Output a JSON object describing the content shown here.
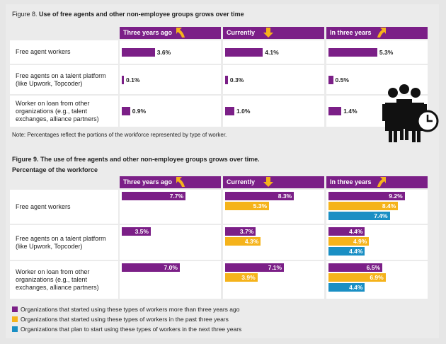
{
  "fig8": {
    "title_prefix": "Figure 8.",
    "title": "Use of free agents and other non-employee groups grows over time",
    "note": "Note: Percentages reflect the portions of the workforce represented by type of worker."
  },
  "fig9": {
    "title_prefix": "Figure 9.",
    "title": "The use of free agents and other non-employee groups grows over time.",
    "subtitle": "Percentage of the workforce"
  },
  "columns": [
    "Three years ago",
    "Currently",
    "In three years"
  ],
  "rows": [
    "Free agent workers",
    "Free agents on a talent platform (like Upwork, Topcoder)",
    "Worker on loan from other organizations (e.g., talent exchanges, alliance partners)"
  ],
  "legend": [
    {
      "label": "Organizations that started using these types of workers more than three years ago",
      "color": "#7b1f87"
    },
    {
      "label": "Organizations that started using these types of workers in the past three years",
      "color": "#f5b31b"
    },
    {
      "label": "Organizations that plan to start using these types of workers in the next three years",
      "color": "#1a8fc4"
    }
  ],
  "icons": [
    "arrow-up-icon",
    "arrow-down-icon",
    "arrow-up-icon",
    "people-clock-icon"
  ],
  "chart_data": [
    {
      "type": "bar",
      "title": "Use of free agents and other non-employee groups grows over time",
      "categories": [
        "Free agent workers",
        "Free agents on a talent platform (like Upwork, Topcoder)",
        "Worker on loan from other organizations (e.g., talent exchanges, alliance partners)"
      ],
      "groups": [
        "Three years ago",
        "Currently",
        "In three years"
      ],
      "values": [
        [
          3.6,
          4.1,
          5.3
        ],
        [
          0.1,
          0.3,
          0.5
        ],
        [
          0.9,
          1.0,
          1.4
        ]
      ],
      "labels": [
        [
          "3.6%",
          "4.1%",
          "5.3%"
        ],
        [
          "0.1%",
          "0.3%",
          "0.5%"
        ],
        [
          "0.9%",
          "1.0%",
          "1.4%"
        ]
      ],
      "unit": "%"
    },
    {
      "type": "bar",
      "title": "The use of free agents and other non-employee groups grows over time.",
      "subtitle": "Percentage of the workforce",
      "categories": [
        "Free agent workers",
        "Free agents on a talent platform (like Upwork, Topcoder)",
        "Worker on loan from other organizations (e.g., talent exchanges, alliance partners)"
      ],
      "groups": [
        "Three years ago",
        "Currently",
        "In three years"
      ],
      "series_colors": [
        "#7b1f87",
        "#f5b31b",
        "#1a8fc4"
      ],
      "values": [
        [
          [
            7.7
          ],
          [
            8.3,
            5.3
          ],
          [
            9.2,
            8.4,
            7.4
          ]
        ],
        [
          [
            3.5
          ],
          [
            3.7,
            4.3
          ],
          [
            4.4,
            4.9,
            4.4
          ]
        ],
        [
          [
            7.0
          ],
          [
            7.1,
            3.9
          ],
          [
            6.5,
            6.9,
            4.4
          ]
        ]
      ],
      "labels": [
        [
          [
            "7.7%"
          ],
          [
            "8.3%",
            "5.3%"
          ],
          [
            "9.2%",
            "8.4%",
            "7.4%"
          ]
        ],
        [
          [
            "3.5%"
          ],
          [
            "3.7%",
            "4.3%"
          ],
          [
            "4.4%",
            "4.9%",
            "4.4%"
          ]
        ],
        [
          [
            "7.0%"
          ],
          [
            "7.1%",
            "3.9%"
          ],
          [
            "6.5%",
            "6.9%",
            "4.4%"
          ]
        ]
      ],
      "unit": "%",
      "legend_position": "bottom"
    }
  ]
}
